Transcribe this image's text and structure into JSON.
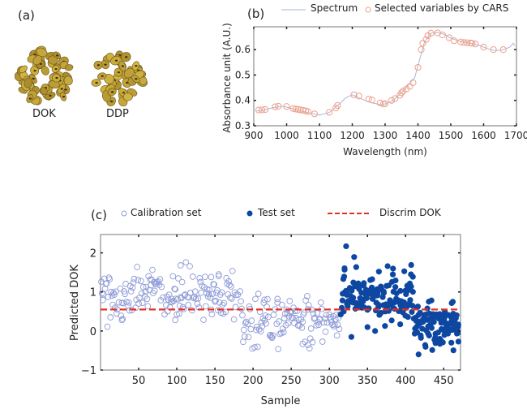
{
  "panel_a": {
    "label": "(a)",
    "samples": [
      {
        "name": "DOK",
        "color": "#b8962e"
      },
      {
        "name": "DDP",
        "color": "#c2a03a"
      }
    ]
  },
  "chart_data": [
    {
      "id": "b",
      "panel_label": "(b)",
      "type": "line",
      "title": "",
      "xlabel": "Wavelength (nm)",
      "ylabel": "Absorbance unit (A.U.)",
      "xlim": [
        900,
        1700
      ],
      "ylim": [
        0.3,
        0.69
      ],
      "xticks": [
        900,
        1000,
        1100,
        1200,
        1300,
        1400,
        1500,
        1600,
        1700
      ],
      "yticks": [
        0.3,
        0.4,
        0.5,
        0.6
      ],
      "ytick_labels": [
        "0.3",
        "0.4",
        "0.5",
        "0.6"
      ],
      "legend": [
        {
          "label": "Spectrum",
          "style": "line",
          "color": "#a9b6dd"
        },
        {
          "label": "Selected variables by CARS",
          "style": "open-circle",
          "color": "#f0a088"
        }
      ],
      "legend_position": "top",
      "series": [
        {
          "name": "Spectrum",
          "x": [
            908,
            930,
            960,
            990,
            1010,
            1040,
            1070,
            1100,
            1130,
            1160,
            1180,
            1200,
            1230,
            1260,
            1290,
            1320,
            1350,
            1370,
            1390,
            1405,
            1420,
            1440,
            1460,
            1480,
            1500,
            1530,
            1560,
            1590,
            1620,
            1640,
            1660,
            1680,
            1690,
            1695
          ],
          "y": [
            0.358,
            0.362,
            0.372,
            0.377,
            0.37,
            0.36,
            0.35,
            0.342,
            0.352,
            0.385,
            0.41,
            0.422,
            0.405,
            0.39,
            0.382,
            0.395,
            0.43,
            0.46,
            0.49,
            0.56,
            0.63,
            0.665,
            0.668,
            0.66,
            0.645,
            0.632,
            0.625,
            0.615,
            0.6,
            0.596,
            0.6,
            0.61,
            0.625,
            0.615
          ]
        },
        {
          "name": "Selected variables by CARS",
          "x": [
            915,
            925,
            935,
            965,
            975,
            1000,
            1020,
            1028,
            1035,
            1042,
            1050,
            1058,
            1065,
            1085,
            1130,
            1150,
            1155,
            1205,
            1220,
            1250,
            1260,
            1285,
            1295,
            1300,
            1320,
            1330,
            1345,
            1350,
            1355,
            1365,
            1375,
            1385,
            1400,
            1410,
            1415,
            1425,
            1430,
            1440,
            1460,
            1475,
            1495,
            1510,
            1530,
            1540,
            1550,
            1560,
            1565,
            1575,
            1600,
            1630,
            1660
          ],
          "y": [
            0.362,
            0.363,
            0.364,
            0.375,
            0.377,
            0.376,
            0.368,
            0.366,
            0.364,
            0.363,
            0.361,
            0.359,
            0.356,
            0.347,
            0.353,
            0.37,
            0.38,
            0.422,
            0.417,
            0.405,
            0.402,
            0.39,
            0.386,
            0.387,
            0.4,
            0.407,
            0.42,
            0.43,
            0.437,
            0.445,
            0.455,
            0.47,
            0.53,
            0.6,
            0.625,
            0.64,
            0.655,
            0.665,
            0.666,
            0.658,
            0.647,
            0.635,
            0.63,
            0.628,
            0.627,
            0.626,
            0.625,
            0.622,
            0.61,
            0.6,
            0.6
          ]
        }
      ]
    },
    {
      "id": "c",
      "panel_label": "(c)",
      "type": "scatter",
      "title": "",
      "xlabel": "Sample",
      "ylabel": "Predicted DOK",
      "xlim": [
        0,
        472
      ],
      "ylim": [
        -1,
        2.47
      ],
      "xticks": [
        50,
        100,
        150,
        200,
        250,
        300,
        350,
        400,
        450
      ],
      "yticks": [
        -1,
        0,
        1,
        2
      ],
      "ytick_labels": [
        "−1",
        "0",
        "1",
        "2"
      ],
      "legend": [
        {
          "label": "Calibration set",
          "style": "open-circle",
          "color": "#8e9bd6"
        },
        {
          "label": "Test set",
          "style": "filled-circle",
          "color": "#0d47a1"
        },
        {
          "label": "Discrim DOK",
          "style": "dashed-line",
          "color": "#e53020"
        }
      ],
      "legend_position": "top",
      "discrim_value": 0.55,
      "series": [
        {
          "name": "Calibration set",
          "segments": [
            {
              "x_range": [
                1,
                185
              ],
              "mean": 0.9,
              "spread": 0.28
            },
            {
              "x_range": [
                185,
                315
              ],
              "mean": 0.25,
              "spread": 0.3
            }
          ],
          "notable_points": [
            [
              105,
              1.68
            ],
            [
              28,
              0.28
            ],
            [
              98,
              0.28
            ],
            [
              155,
              1.45
            ],
            [
              145,
              1.38
            ],
            [
              232,
              0.82
            ],
            [
              215,
              0.8
            ],
            [
              272,
              -0.36
            ],
            [
              265,
              -0.33
            ]
          ]
        },
        {
          "name": "Test set",
          "segments": [
            {
              "x_range": [
                315,
                410
              ],
              "mean": 0.9,
              "spread": 0.3
            },
            {
              "x_range": [
                410,
                470
              ],
              "mean": 0.2,
              "spread": 0.3
            }
          ],
          "notable_points": [
            [
              322,
              2.17
            ],
            [
              320,
              1.57
            ],
            [
              365,
              1.52
            ],
            [
              407,
              1.45
            ],
            [
              350,
              0.1
            ],
            [
              417,
              -0.6
            ],
            [
              445,
              -0.33
            ],
            [
              460,
              -0.3
            ],
            [
              360,
              0.0
            ]
          ]
        }
      ]
    }
  ],
  "figure_labels": {
    "a": "(a)",
    "b": "(b)",
    "c": "(c)"
  }
}
